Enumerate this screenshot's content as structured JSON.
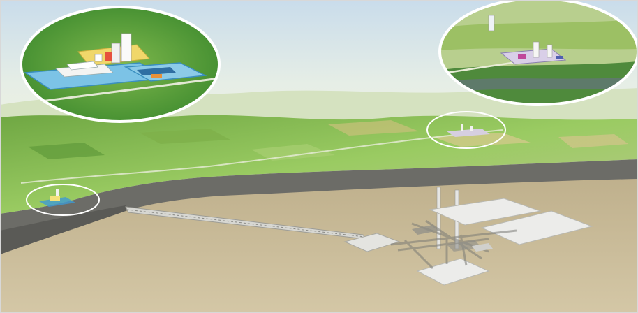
{
  "illustration": {
    "subject": "underground-repository-cutaway",
    "insets": [
      "surface-facility-detail-left",
      "surface-facility-detail-right"
    ],
    "colors": {
      "sky_top": "#cfe0ec",
      "sky_bottom": "#eef2e6",
      "grass": "#8fc35a",
      "grass_dark": "#5f9a3a",
      "rock_face": "#6b6b66",
      "underground": "#c8b996",
      "platform": "#e9e9e6",
      "inset_ring": "#ffffff",
      "water": "#4aa3d6"
    }
  }
}
